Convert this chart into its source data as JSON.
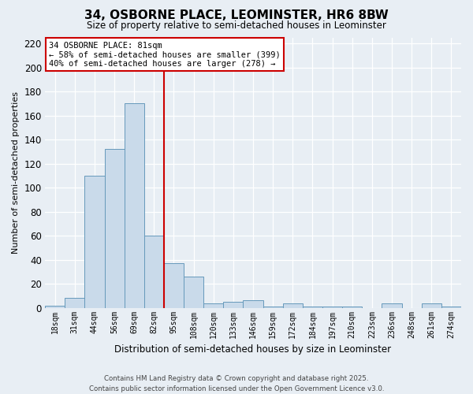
{
  "title": "34, OSBORNE PLACE, LEOMINSTER, HR6 8BW",
  "subtitle": "Size of property relative to semi-detached houses in Leominster",
  "xlabel": "Distribution of semi-detached houses by size in Leominster",
  "ylabel": "Number of semi-detached properties",
  "categories": [
    "18sqm",
    "31sqm",
    "44sqm",
    "56sqm",
    "69sqm",
    "82sqm",
    "95sqm",
    "108sqm",
    "120sqm",
    "133sqm",
    "146sqm",
    "159sqm",
    "172sqm",
    "184sqm",
    "197sqm",
    "210sqm",
    "223sqm",
    "236sqm",
    "248sqm",
    "261sqm",
    "274sqm"
  ],
  "values": [
    2,
    8,
    110,
    132,
    170,
    60,
    37,
    26,
    4,
    5,
    6,
    1,
    4,
    1,
    1,
    1,
    0,
    4,
    0,
    4,
    1
  ],
  "bar_color": "#c9daea",
  "bar_edge_color": "#6699bb",
  "vline_color": "#cc0000",
  "annotation_line1": "34 OSBORNE PLACE: 81sqm",
  "annotation_line2": "← 58% of semi-detached houses are smaller (399)",
  "annotation_line3": "40% of semi-detached houses are larger (278) →",
  "annotation_box_color": "#ffffff",
  "annotation_box_edge": "#cc0000",
  "ylim": [
    0,
    225
  ],
  "yticks": [
    0,
    20,
    40,
    60,
    80,
    100,
    120,
    140,
    160,
    180,
    200,
    220
  ],
  "footer": "Contains HM Land Registry data © Crown copyright and database right 2025.\nContains public sector information licensed under the Open Government Licence v3.0.",
  "background_color": "#e8eef4",
  "grid_color": "#ffffff"
}
